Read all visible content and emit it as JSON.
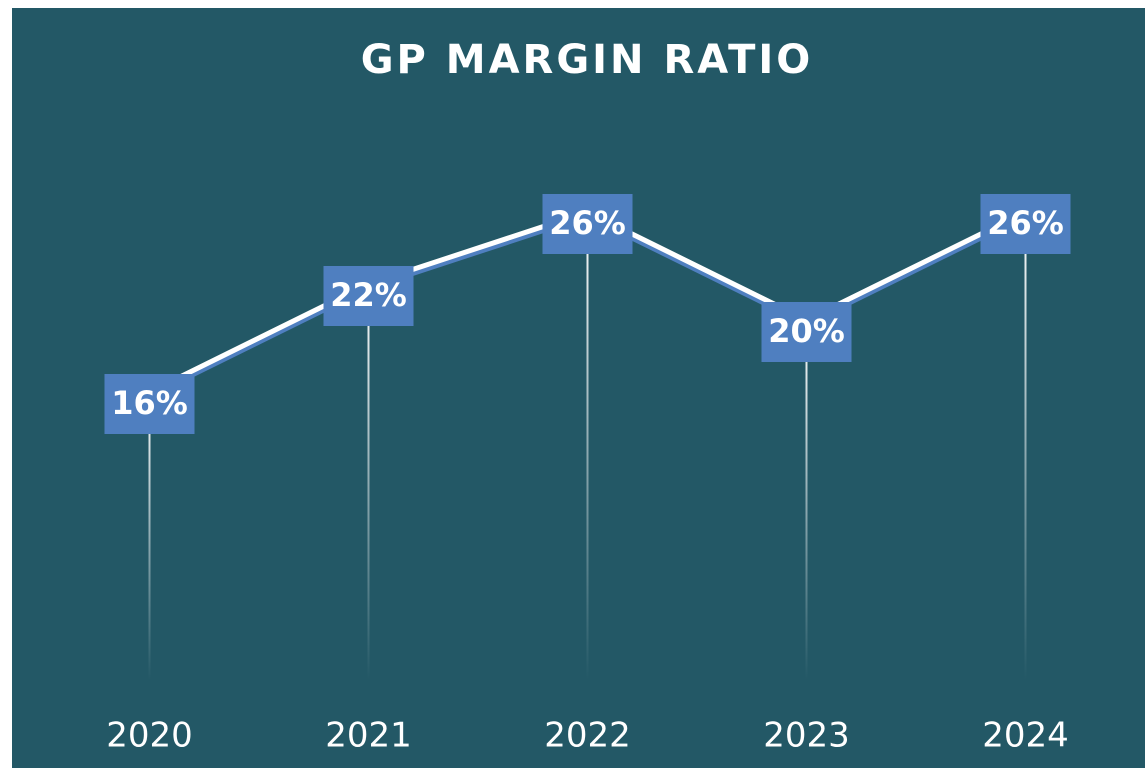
{
  "chart_data": {
    "type": "line",
    "title": "GP MARGIN RATIO",
    "categories": [
      "2020",
      "2021",
      "2022",
      "2023",
      "2024"
    ],
    "values": [
      16,
      22,
      26,
      20,
      26
    ],
    "value_labels": [
      "16%",
      "22%",
      "26%",
      "20%",
      "26%"
    ],
    "color": "#ffffff",
    "label_color": "#4f7fc0",
    "background": "#235866",
    "ylim": [
      0,
      30
    ],
    "drop_lines": true
  }
}
